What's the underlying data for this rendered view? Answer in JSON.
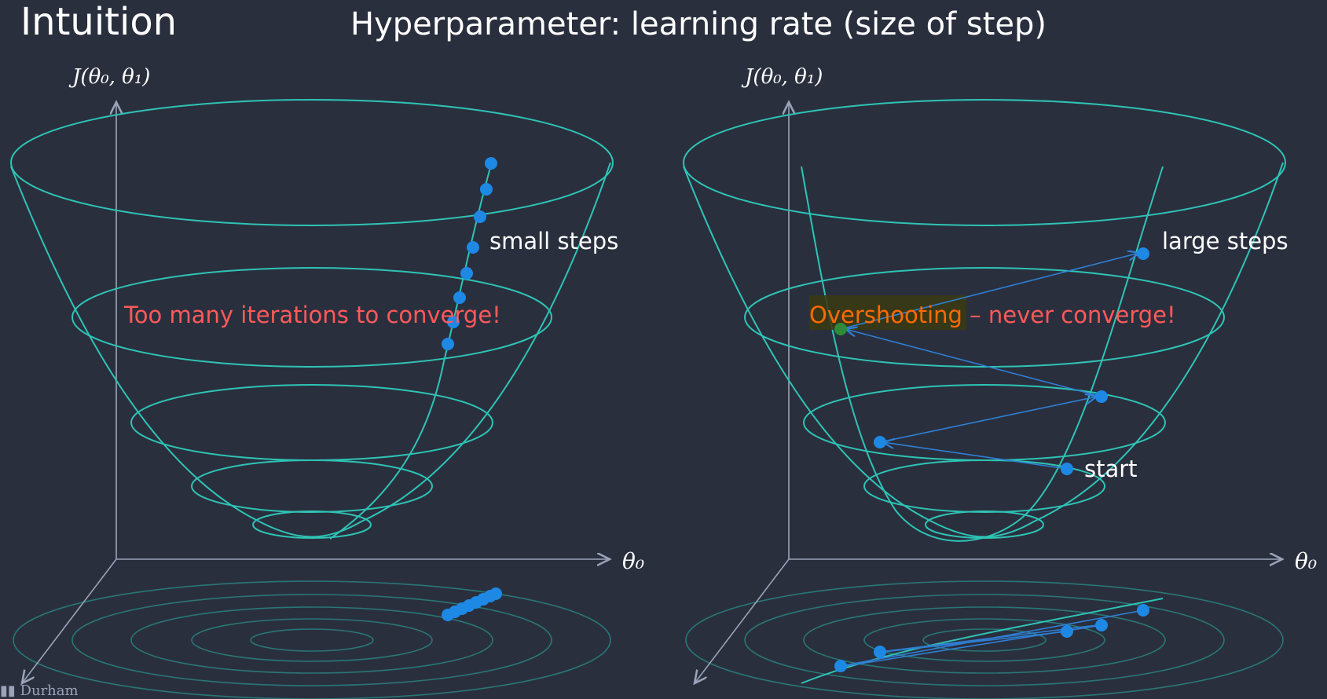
{
  "slide": {
    "title": "Intuition",
    "subtitle": "Hyperparameter: learning rate (size of step)"
  },
  "left_panel": {
    "z_axis_label": "J(θ₀, θ₁)",
    "x_axis_label": "θ₀",
    "steps_label": "small steps",
    "warning": "Too many iterations to converge!"
  },
  "right_panel": {
    "z_axis_label": "J(θ₀, θ₁)",
    "x_axis_label": "θ₀",
    "steps_label": "large steps",
    "start_label": "start",
    "warning_highlight": "Overshooting",
    "warning_rest": " – never converge!"
  },
  "footer": {
    "logo_text": "Durham"
  },
  "colors": {
    "background": "#2a2f3e",
    "surface": "#2ec4b6",
    "points": "#1e88e5",
    "warning": "#ff5a5a",
    "highlight": "#ff6a00"
  }
}
